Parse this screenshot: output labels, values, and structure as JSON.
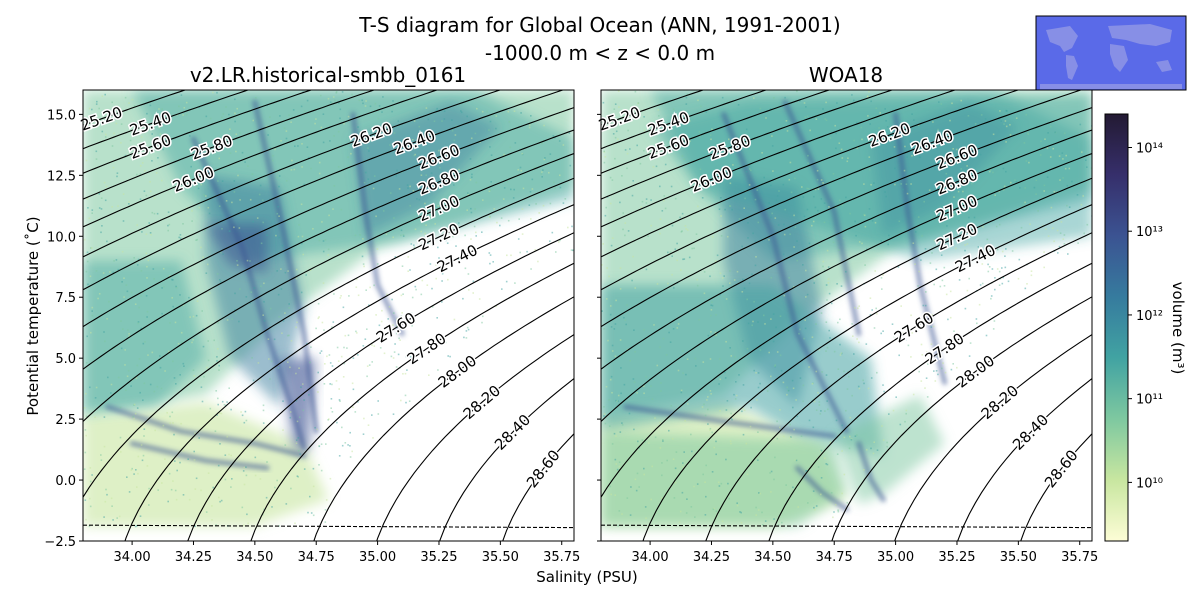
{
  "figure": {
    "title_line1": "T-S diagram for Global Ocean (ANN, 1991-2001)",
    "title_line2": "-1000.0 m < z < 0.0 m",
    "xlabel": "Salinity (PSU)",
    "ylabel": "Potential temperature (˚C)",
    "colorbar_label": "volume (m³)",
    "inset_map": "world-map-inset"
  },
  "chart_data": [
    {
      "type": "heatmap",
      "title": "v2.LR.historical-smbb_0161",
      "xlim": [
        33.8,
        35.8
      ],
      "ylim": [
        -2.5,
        16
      ],
      "x_ticks": [
        "34.00",
        "34.25",
        "34.50",
        "34.75",
        "35.00",
        "35.25",
        "35.50",
        "35.75"
      ],
      "x_tick_values": [
        34.0,
        34.25,
        34.5,
        34.75,
        35.0,
        35.25,
        35.5,
        35.75
      ],
      "y_ticks": [
        "−2.5",
        "0.0",
        "2.5",
        "5.0",
        "7.5",
        "10.0",
        "12.5",
        "15.0"
      ],
      "y_tick_values": [
        -2.5,
        0.0,
        2.5,
        5.0,
        7.5,
        10.0,
        12.5,
        15.0
      ],
      "freezing_line": {
        "t_at_33_8": -1.85,
        "t_at_35_8": -1.95,
        "style": "dashed"
      },
      "isopycnals": [
        "25.20",
        "25.40",
        "25.60",
        "25.80",
        "26.00",
        "26.20",
        "26.40",
        "26.60",
        "26.80",
        "27.00",
        "27.20",
        "27.40",
        "27.60",
        "27.80",
        "28.00",
        "28.20",
        "28.40",
        "28.60"
      ],
      "colorbar": {
        "scale": "log",
        "ticks": [
          "10¹⁰",
          "10¹¹",
          "10¹²",
          "10¹³",
          "10¹⁴"
        ]
      }
    },
    {
      "type": "heatmap",
      "title": "WOA18",
      "xlim": [
        33.8,
        35.8
      ],
      "ylim": [
        -2.5,
        16
      ],
      "x_ticks": [
        "34.00",
        "34.25",
        "34.50",
        "34.75",
        "35.00",
        "35.25",
        "35.50",
        "35.75"
      ],
      "x_tick_values": [
        34.0,
        34.25,
        34.5,
        34.75,
        35.0,
        35.25,
        35.5,
        35.75
      ],
      "y_ticks": [],
      "freezing_line": {
        "t_at_33_8": -1.85,
        "t_at_35_8": -1.95,
        "style": "dashed"
      },
      "isopycnals": [
        "25.20",
        "25.40",
        "25.60",
        "25.80",
        "26.00",
        "26.20",
        "26.40",
        "26.60",
        "26.80",
        "27.00",
        "27.20",
        "27.40",
        "27.60",
        "27.80",
        "28.00",
        "28.20",
        "28.40",
        "28.60"
      ]
    }
  ],
  "colorbar": {
    "scale": "log",
    "tick_exponents": [
      10,
      11,
      12,
      13,
      14
    ],
    "tick_labels": [
      "10¹⁰",
      "10¹¹",
      "10¹²",
      "10¹³",
      "10¹⁴"
    ],
    "vmin_exp": 9.3,
    "vmax_exp": 14.4,
    "colors": [
      "#fdfdd6",
      "#c8e6a0",
      "#7ec8a0",
      "#41a3a2",
      "#367b9e",
      "#3b5392",
      "#362f6b",
      "#231a33"
    ]
  }
}
